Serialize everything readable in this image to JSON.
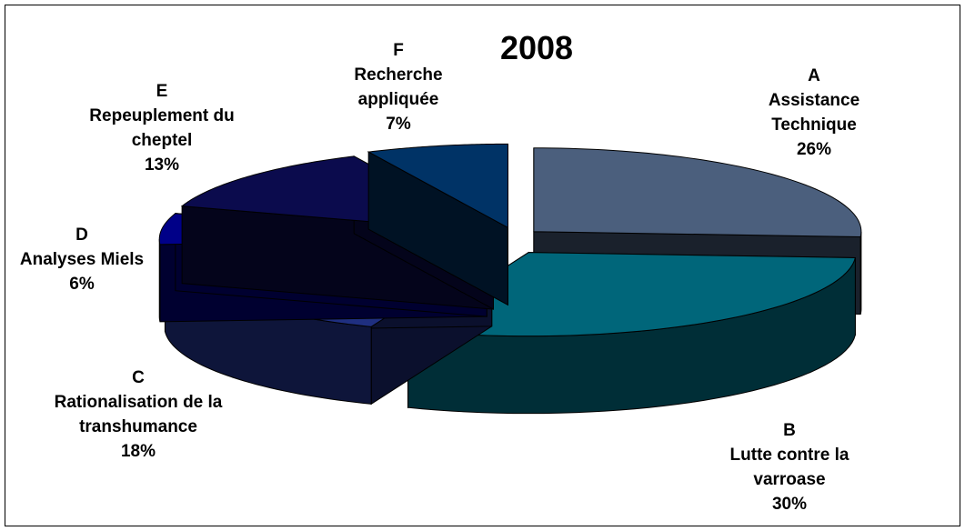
{
  "chart_data": {
    "type": "pie",
    "title": "2008",
    "categories": [
      "A",
      "B",
      "C",
      "D",
      "E",
      "F"
    ],
    "names": [
      "Assistance Technique",
      "Lutte contre la varroase",
      "Rationalisation de la transhumance",
      "Analyses Miels",
      "Repeuplement du cheptel",
      "Recherche appliquée"
    ],
    "values": [
      26,
      30,
      18,
      6,
      13,
      7
    ],
    "value_labels": [
      "26%",
      "30%",
      "18%",
      "6%",
      "13%",
      "7%"
    ],
    "colors": [
      "#4b5f7d",
      "#00667a",
      "#1f2f80",
      "#000088",
      "#0b0b4d",
      "#003366"
    ]
  }
}
